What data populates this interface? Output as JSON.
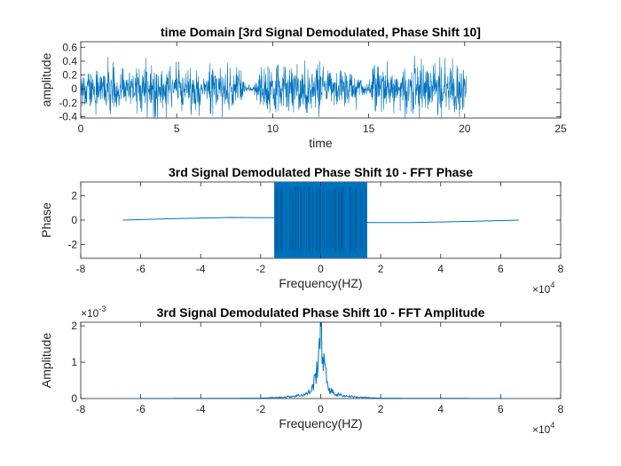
{
  "chart_data": [
    {
      "type": "line",
      "title": "time Domain [3rd Signal Demodulated, Phase Shift 10]",
      "xlabel": "time",
      "ylabel": "amplitude",
      "xlim": [
        0,
        25
      ],
      "ylim": [
        -0.42,
        0.68
      ],
      "xticks": [
        0,
        5,
        10,
        15,
        20,
        25
      ],
      "xtick_labels": [
        "0",
        "5",
        "10",
        "15",
        "20",
        "25"
      ],
      "yticks": [
        -0.4,
        -0.2,
        0,
        0.2,
        0.4,
        0.6
      ],
      "ytick_labels": [
        "-0.4",
        "-0.2",
        "0",
        "0.2",
        "0.4",
        "0.6"
      ],
      "color": "#0072bd",
      "series": [
        {
          "x": [
            0,
            0.5,
            1.2,
            1.8,
            2.5,
            3.1,
            3.7,
            4.3,
            5.0,
            5.6,
            6.2,
            6.5,
            6.8,
            7.2,
            7.6,
            8.0,
            8.3,
            8.6,
            9.0,
            9.4,
            10.0,
            10.6,
            11.2,
            11.8,
            12.4,
            13.0,
            13.6,
            14.2,
            14.8,
            15.4,
            16.0,
            16.6,
            17.2,
            17.8,
            18.4,
            19.0,
            19.6,
            20.1
          ],
          "amplitude_envelope": [
            0.45,
            0.5,
            0.48,
            0.45,
            0.42,
            0.5,
            0.45,
            0.48,
            0.46,
            0.44,
            0.42,
            0.1,
            0.68,
            0.4,
            0.45,
            0.35,
            0.38,
            0.08,
            0.05,
            0.42,
            0.48,
            0.5,
            0.45,
            0.44,
            0.5,
            0.4,
            0.3,
            0.42,
            0.1,
            0.45,
            0.45,
            0.5,
            0.48,
            0.52,
            0.46,
            0.5,
            0.45,
            0.42
          ]
        }
      ]
    },
    {
      "type": "line",
      "title": "3rd Signal Demodulated Phase Shift 10 - FFT Phase",
      "xlabel": "Frequency(HZ)",
      "ylabel": "Phase",
      "xlim": [
        -8,
        8
      ],
      "ylim": [
        -3.14,
        3.14
      ],
      "x_scale_exponent": "4",
      "xticks": [
        -8,
        -6,
        -4,
        -2,
        0,
        2,
        4,
        6,
        8
      ],
      "xtick_labels": [
        "-8",
        "-6",
        "-4",
        "-2",
        "0",
        "2",
        "4",
        "6",
        "8"
      ],
      "yticks": [
        -2,
        0,
        2
      ],
      "ytick_labels": [
        "-2",
        "0",
        "2"
      ],
      "color": "#0072bd",
      "series": [
        {
          "x": [
            -6.6,
            -5.0,
            -3.0,
            -2.0,
            -1.6,
            1.6,
            2.0,
            3.0,
            5.0,
            6.6
          ],
          "y": [
            0.0,
            0.12,
            0.22,
            0.2,
            0.2,
            -0.2,
            -0.2,
            -0.2,
            -0.1,
            0.0
          ],
          "dense_band_x": [
            -1.55,
            1.55
          ],
          "dense_band_y": [
            -3.14,
            3.14
          ]
        }
      ]
    },
    {
      "type": "line",
      "title": "3rd Signal Demodulated Phase Shift 10 - FFT Amplitude",
      "xlabel": "Frequency(HZ)",
      "ylabel": "Amplitude",
      "xlim": [
        -8,
        8
      ],
      "ylim": [
        0,
        2.1
      ],
      "x_scale_exponent": "4",
      "y_scale_exponent": "-3",
      "xticks": [
        -8,
        -6,
        -4,
        -2,
        0,
        2,
        4,
        6,
        8
      ],
      "xtick_labels": [
        "-8",
        "-6",
        "-4",
        "-2",
        "0",
        "2",
        "4",
        "6",
        "8"
      ],
      "yticks": [
        0,
        1,
        2
      ],
      "ytick_labels": [
        "0",
        "1",
        "2"
      ],
      "color": "#0072bd",
      "series": [
        {
          "x": [
            -6.6,
            -2.0,
            -1.2,
            -0.8,
            -0.5,
            -0.3,
            -0.15,
            -0.05,
            0,
            0.05,
            0.15,
            0.3,
            0.5,
            0.8,
            1.2,
            2.0,
            6.6
          ],
          "y": [
            0.0,
            0.01,
            0.04,
            0.08,
            0.12,
            0.25,
            0.7,
            1.6,
            2.1,
            1.6,
            0.7,
            0.25,
            0.12,
            0.08,
            0.04,
            0.01,
            0.0
          ]
        }
      ]
    }
  ]
}
